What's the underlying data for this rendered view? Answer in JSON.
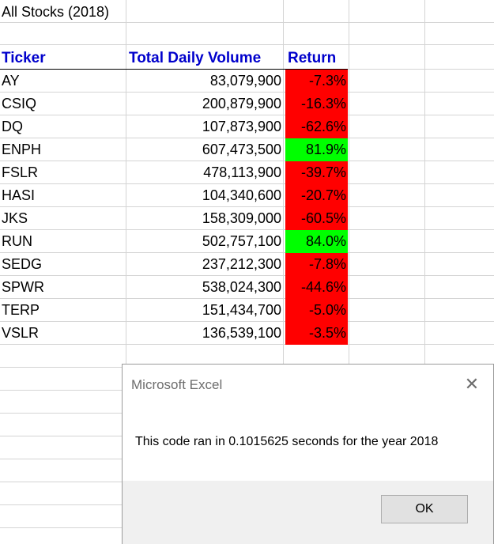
{
  "sheet": {
    "title": "All Stocks (2018)",
    "headers": {
      "ticker": "Ticker",
      "volume": "Total Daily Volume",
      "return": "Return"
    },
    "rows": [
      {
        "ticker": "AY",
        "volume": "83,079,900",
        "return": "-7.3%",
        "status": "negative"
      },
      {
        "ticker": "CSIQ",
        "volume": "200,879,900",
        "return": "-16.3%",
        "status": "negative"
      },
      {
        "ticker": "DQ",
        "volume": "107,873,900",
        "return": "-62.6%",
        "status": "negative"
      },
      {
        "ticker": "ENPH",
        "volume": "607,473,500",
        "return": "81.9%",
        "status": "positive"
      },
      {
        "ticker": "FSLR",
        "volume": "478,113,900",
        "return": "-39.7%",
        "status": "negative"
      },
      {
        "ticker": "HASI",
        "volume": "104,340,600",
        "return": "-20.7%",
        "status": "negative"
      },
      {
        "ticker": "JKS",
        "volume": "158,309,000",
        "return": "-60.5%",
        "status": "negative"
      },
      {
        "ticker": "RUN",
        "volume": "502,757,100",
        "return": "84.0%",
        "status": "positive"
      },
      {
        "ticker": "SEDG",
        "volume": "237,212,300",
        "return": "-7.8%",
        "status": "negative"
      },
      {
        "ticker": "SPWR",
        "volume": "538,024,300",
        "return": "-44.6%",
        "status": "negative"
      },
      {
        "ticker": "TERP",
        "volume": "151,434,700",
        "return": "-5.0%",
        "status": "negative"
      },
      {
        "ticker": "VSLR",
        "volume": "136,539,100",
        "return": "-3.5%",
        "status": "negative"
      }
    ]
  },
  "colors": {
    "header_text": "#0000cc",
    "negative_fill": "#ff0000",
    "positive_fill": "#00ff00",
    "gridline": "#d4d4d4"
  },
  "dialog": {
    "title": "Microsoft Excel",
    "close_icon": "close-icon",
    "message": "This code ran in 0.1015625 seconds for the year 2018",
    "ok_label": "OK"
  }
}
